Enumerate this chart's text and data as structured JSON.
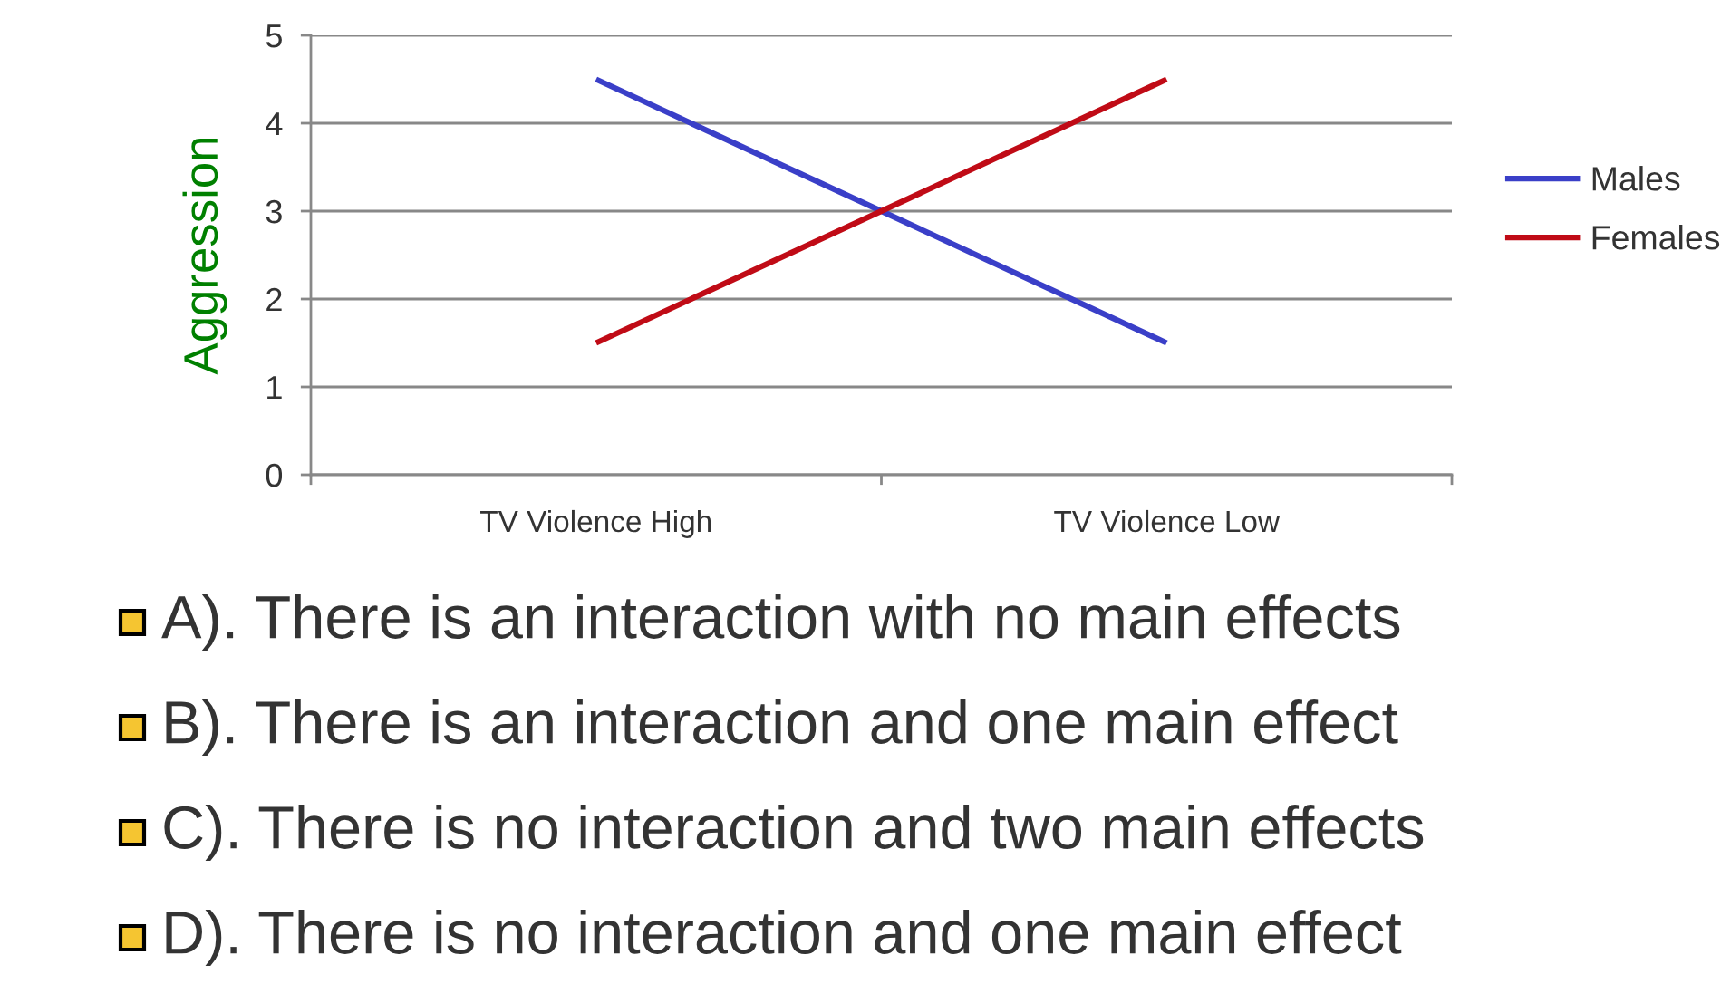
{
  "chart_data": {
    "type": "line",
    "ylabel": "Aggression",
    "categories": [
      "TV Violence High",
      "TV Violence Low"
    ],
    "series": [
      {
        "name": "Males",
        "color": "#3a3fc8",
        "values": [
          4.5,
          1.5
        ]
      },
      {
        "name": "Females",
        "color": "#c00b16",
        "values": [
          1.5,
          4.5
        ]
      }
    ],
    "ylim": [
      0,
      5
    ],
    "yticks": [
      0,
      1,
      2,
      3,
      4,
      5
    ],
    "grid": "y",
    "legend": "right",
    "marker": "none",
    "line_style": "solid",
    "annotations": [
      "A). There is an interaction with no main effects",
      "B). There is an interaction and one main effect",
      "C). There is no interaction and two main effects",
      "D). There is no interaction and one main effect"
    ]
  }
}
